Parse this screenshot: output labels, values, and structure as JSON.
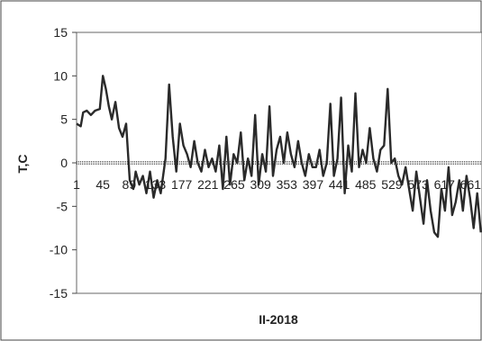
{
  "chart_data": {
    "type": "line",
    "xlabel": "II-2018",
    "ylabel": "T,C",
    "ylim": [
      -15,
      15
    ],
    "yticks": [
      15,
      10,
      5,
      0,
      -5,
      -10,
      -15
    ],
    "xtick_labels": [
      "1",
      "45",
      "89",
      "133",
      "177",
      "221",
      "265",
      "309",
      "353",
      "397",
      "441",
      "485",
      "529",
      "573",
      "617",
      "661"
    ],
    "xlim": [
      1,
      680
    ],
    "reference_line": 0,
    "series": [
      {
        "x": [
          1,
          8,
          12,
          18,
          25,
          32,
          40,
          45,
          50,
          55,
          60,
          66,
          72,
          78,
          84,
          90,
          96,
          100,
          106,
          112,
          118,
          124,
          130,
          136,
          142,
          150,
          156,
          162,
          168,
          174,
          180,
          186,
          192,
          198,
          204,
          210,
          216,
          222,
          228,
          234,
          240,
          246,
          252,
          258,
          264,
          270,
          276,
          282,
          288,
          294,
          300,
          306,
          312,
          318,
          324,
          330,
          336,
          342,
          348,
          354,
          360,
          366,
          372,
          378,
          384,
          390,
          396,
          402,
          408,
          414,
          420,
          426,
          432,
          438,
          444,
          450,
          456,
          462,
          468,
          474,
          480,
          486,
          492,
          498,
          504,
          510,
          516,
          522,
          528,
          534,
          540,
          546,
          552,
          558,
          564,
          570,
          576,
          582,
          588,
          594,
          600,
          606,
          612,
          618,
          624,
          630,
          636,
          642,
          648,
          654,
          660,
          666,
          672,
          678
        ],
        "y": [
          4.5,
          4.2,
          5.8,
          6.0,
          5.5,
          6.0,
          6.2,
          10.0,
          8.5,
          6.5,
          5.0,
          7.0,
          4.0,
          3.0,
          4.5,
          -2.0,
          -3.0,
          -1.0,
          -2.5,
          -1.5,
          -3.5,
          -1.0,
          -4.0,
          -2.0,
          -3.5,
          0.5,
          9.0,
          3.0,
          -1.0,
          4.5,
          2.0,
          1.0,
          -0.5,
          2.5,
          0.0,
          -1.0,
          1.5,
          -0.5,
          0.5,
          -1.0,
          2.0,
          -3.0,
          3.0,
          -2.5,
          1.0,
          0.0,
          3.5,
          -2.0,
          0.5,
          -1.5,
          5.5,
          -2.5,
          1.0,
          -1.0,
          6.5,
          -1.5,
          1.5,
          3.0,
          0.0,
          3.5,
          1.0,
          -0.5,
          2.5,
          0.0,
          -1.5,
          1.0,
          -0.5,
          -0.5,
          1.5,
          -1.5,
          0.0,
          6.8,
          -1.5,
          0.5,
          7.5,
          -3.5,
          2.0,
          -1.0,
          8.0,
          -0.5,
          1.5,
          0.0,
          4.0,
          0.5,
          -1.0,
          1.5,
          2.0,
          8.5,
          0.0,
          0.5,
          -1.5,
          -2.5,
          -0.5,
          -3.0,
          -5.5,
          -1.0,
          -4.0,
          -7.0,
          -2.0,
          -5.5,
          -8.0,
          -8.5,
          -3.0,
          -5.5,
          -0.5,
          -6.0,
          -4.5,
          -2.0,
          -5.5,
          -1.5,
          -4.0,
          -7.5,
          -3.5,
          -8.0
        ]
      }
    ]
  }
}
